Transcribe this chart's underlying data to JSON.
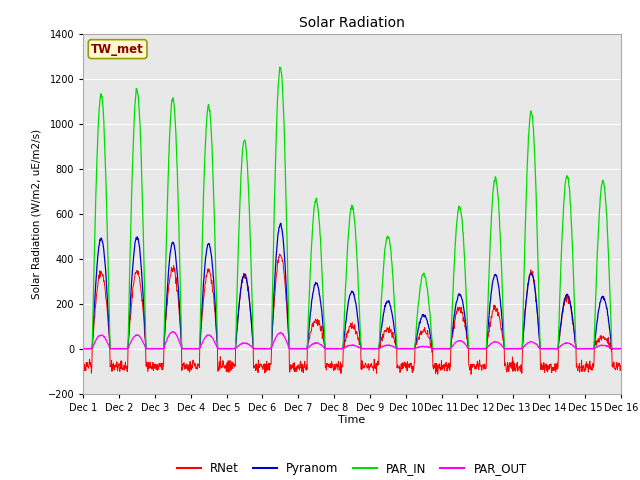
{
  "title": "Solar Radiation",
  "ylabel": "Solar Radiation (W/m2, uE/m2/s)",
  "xlabel": "Time",
  "ylim": [
    -200,
    1400
  ],
  "xlim": [
    0,
    15
  ],
  "yticks": [
    -200,
    0,
    200,
    400,
    600,
    800,
    1000,
    1200,
    1400
  ],
  "xtick_labels": [
    "Dec 1",
    "Dec 2",
    "Dec 3",
    "Dec 4",
    "Dec 5",
    "Dec 6",
    "Dec 7",
    "Dec 8",
    "Dec 9",
    "Dec 10",
    "Dec 11",
    "Dec 12",
    "Dec 13",
    "Dec 14",
    "Dec 15",
    "Dec 16"
  ],
  "site_label": "TW_met",
  "colors": {
    "RNet": "#ff0000",
    "Pyranom": "#0000cc",
    "PAR_IN": "#00dd00",
    "PAR_OUT": "#ff00ff"
  },
  "fig_bg": "#ffffff",
  "plot_area_color": "#e8e8e8"
}
